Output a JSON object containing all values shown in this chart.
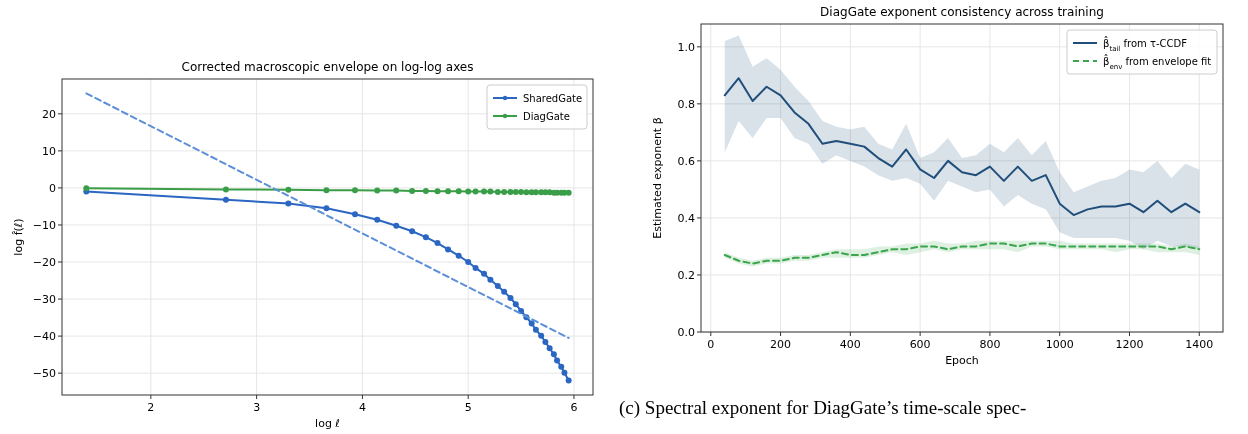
{
  "chart_data": [
    {
      "type": "line",
      "title": "Corrected macroscopic envelope on log-log axes",
      "xlabel": "log ℓ",
      "ylabel": "log f̂(ℓ)",
      "xlim": [
        1.16,
        6.18
      ],
      "xticks": [
        2,
        3,
        4,
        5,
        6
      ],
      "ylim": [
        -55.9,
        29.4
      ],
      "yticks": [
        -50,
        -40,
        -30,
        -20,
        -10,
        0,
        10,
        20
      ],
      "grid": true,
      "legend": "top right",
      "marker": "circle",
      "x": [
        1.39,
        2.71,
        3.3,
        3.66,
        3.93,
        4.14,
        4.32,
        4.47,
        4.6,
        4.71,
        4.81,
        4.91,
        5.0,
        5.07,
        5.15,
        5.21,
        5.28,
        5.34,
        5.4,
        5.45,
        5.5,
        5.55,
        5.6,
        5.64,
        5.69,
        5.73,
        5.77,
        5.81,
        5.84,
        5.88,
        5.91,
        5.95
      ],
      "series": [
        {
          "name": "SharedGate",
          "color": "#2a66c2",
          "values": [
            -1.0,
            -3.2,
            -4.2,
            -5.5,
            -7.1,
            -8.6,
            -10.2,
            -11.7,
            -13.3,
            -14.9,
            -16.6,
            -18.3,
            -20.0,
            -21.6,
            -23.2,
            -24.8,
            -26.5,
            -28.0,
            -29.7,
            -31.4,
            -33.2,
            -34.9,
            -36.6,
            -38.3,
            -39.9,
            -41.6,
            -43.3,
            -44.9,
            -46.6,
            -48.3,
            -49.9,
            -52.0
          ]
        },
        {
          "name": "DiagGate",
          "color": "#3a9e48",
          "values": [
            -0.1,
            -0.4,
            -0.5,
            -0.6,
            -0.6,
            -0.7,
            -0.7,
            -0.8,
            -0.8,
            -0.9,
            -0.9,
            -0.9,
            -1.0,
            -1.0,
            -1.0,
            -1.0,
            -1.1,
            -1.1,
            -1.1,
            -1.1,
            -1.1,
            -1.2,
            -1.2,
            -1.2,
            -1.2,
            -1.2,
            -1.2,
            -1.3,
            -1.3,
            -1.3,
            -1.3,
            -1.3
          ]
        },
        {
          "color": "#5b8fd9",
          "x": [
            1.39,
            5.95
          ],
          "values": [
            25.5,
            -40.5
          ],
          "line_style": "dashed",
          "marker": "none"
        }
      ]
    },
    {
      "type": "line",
      "title": "DiagGate exponent consistency across training",
      "xlabel": "Epoch",
      "ylabel": "Estimated exponent β",
      "xlim": [
        -28,
        1468
      ],
      "xticks": [
        0,
        200,
        400,
        600,
        800,
        1000,
        1200,
        1400
      ],
      "ylim": [
        0,
        1.08
      ],
      "yticks": [
        {
          "value": 0,
          "label": "0.0"
        },
        {
          "value": 0.2,
          "label": "0.2"
        },
        {
          "value": 0.4,
          "label": "0.4"
        },
        {
          "value": 0.6,
          "label": "0.6"
        },
        {
          "value": 0.8,
          "label": "0.8"
        },
        {
          "value": 1,
          "label": "1.0"
        }
      ],
      "grid": true,
      "legend": "top right",
      "annotations": [
        "(c) Spectral exponent for DiagGate’s time-scale spec-"
      ],
      "x": [
        40,
        80,
        120,
        160,
        200,
        240,
        280,
        320,
        360,
        400,
        440,
        480,
        520,
        560,
        600,
        640,
        680,
        720,
        760,
        800,
        840,
        880,
        920,
        960,
        1000,
        1040,
        1080,
        1120,
        1160,
        1200,
        1240,
        1280,
        1320,
        1360,
        1400
      ],
      "series": [
        {
          "name": "β̂$_{tail}$ from τ-CCDF",
          "color": "#1f4e7a",
          "line_style": "solid",
          "values": [
            0.83,
            0.89,
            0.81,
            0.86,
            0.83,
            0.77,
            0.73,
            0.66,
            0.67,
            0.66,
            0.65,
            0.61,
            0.58,
            0.64,
            0.57,
            0.54,
            0.6,
            0.56,
            0.55,
            0.58,
            0.53,
            0.58,
            0.53,
            0.55,
            0.45,
            0.41,
            0.43,
            0.44,
            0.44,
            0.45,
            0.42,
            0.46,
            0.42,
            0.45,
            0.42
          ],
          "upper": [
            1.02,
            1.04,
            0.93,
            0.96,
            0.92,
            0.86,
            0.81,
            0.74,
            0.72,
            0.71,
            0.72,
            0.66,
            0.64,
            0.73,
            0.61,
            0.63,
            0.68,
            0.61,
            0.62,
            0.66,
            0.63,
            0.68,
            0.62,
            0.67,
            0.56,
            0.49,
            0.51,
            0.53,
            0.54,
            0.57,
            0.56,
            0.6,
            0.54,
            0.59,
            0.57
          ],
          "lower": [
            0.63,
            0.74,
            0.68,
            0.75,
            0.75,
            0.68,
            0.66,
            0.59,
            0.62,
            0.6,
            0.58,
            0.55,
            0.53,
            0.54,
            0.52,
            0.46,
            0.53,
            0.51,
            0.49,
            0.5,
            0.44,
            0.48,
            0.45,
            0.43,
            0.35,
            0.33,
            0.33,
            0.33,
            0.33,
            0.32,
            0.29,
            0.32,
            0.3,
            0.3,
            0.29
          ]
        },
        {
          "name": "β̂$_{env}$ from envelope fit",
          "color": "#3aa64c",
          "line_style": "dashed",
          "values": [
            0.27,
            0.25,
            0.24,
            0.25,
            0.25,
            0.26,
            0.26,
            0.27,
            0.28,
            0.27,
            0.27,
            0.28,
            0.29,
            0.29,
            0.3,
            0.3,
            0.29,
            0.3,
            0.3,
            0.31,
            0.31,
            0.3,
            0.31,
            0.31,
            0.3,
            0.3,
            0.3,
            0.3,
            0.3,
            0.3,
            0.3,
            0.3,
            0.29,
            0.3,
            0.29
          ],
          "upper": [
            0.28,
            0.26,
            0.25,
            0.26,
            0.26,
            0.27,
            0.27,
            0.28,
            0.29,
            0.29,
            0.29,
            0.3,
            0.3,
            0.31,
            0.31,
            0.32,
            0.31,
            0.31,
            0.32,
            0.32,
            0.32,
            0.32,
            0.32,
            0.32,
            0.32,
            0.31,
            0.31,
            0.31,
            0.31,
            0.31,
            0.31,
            0.31,
            0.3,
            0.31,
            0.3
          ],
          "lower": [
            0.26,
            0.24,
            0.23,
            0.24,
            0.24,
            0.25,
            0.25,
            0.26,
            0.26,
            0.26,
            0.26,
            0.27,
            0.28,
            0.27,
            0.28,
            0.29,
            0.28,
            0.29,
            0.29,
            0.29,
            0.29,
            0.28,
            0.3,
            0.3,
            0.29,
            0.29,
            0.29,
            0.29,
            0.28,
            0.29,
            0.29,
            0.28,
            0.28,
            0.28,
            0.27
          ]
        }
      ]
    }
  ]
}
